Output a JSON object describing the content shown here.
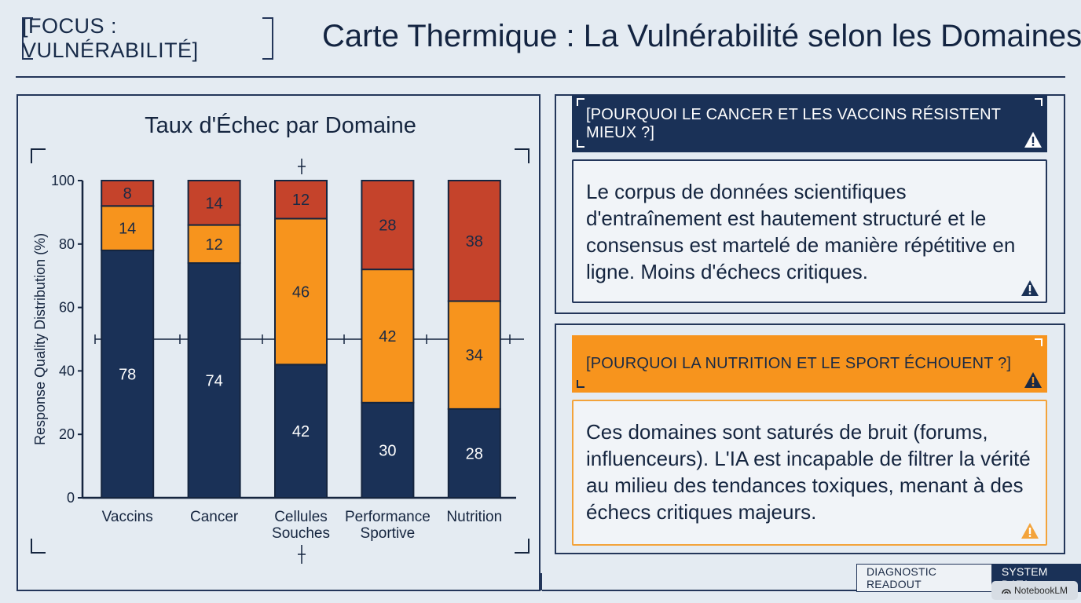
{
  "header": {
    "tag": "[FOCUS : VULNÉRABILITÉ]",
    "title": "Carte Thermique : La Vulnérabilité selon les Domaines"
  },
  "chart_data": {
    "type": "bar",
    "stacked": true,
    "title": "Taux d'Échec par Domaine",
    "xlabel": "",
    "ylabel": "Response Quality Distribution (%)",
    "ylim": [
      0,
      100
    ],
    "yticks": [
      0,
      20,
      40,
      60,
      80,
      100
    ],
    "categories": [
      [
        "Vaccins"
      ],
      [
        "Cancer"
      ],
      [
        "Cellules",
        "Souches"
      ],
      [
        "Performance",
        "Sportive"
      ],
      [
        "Nutrition"
      ]
    ],
    "series": [
      {
        "values": [
          78,
          74,
          42,
          30,
          28
        ],
        "color": "#1a3157",
        "label_color": "#ffffff"
      },
      {
        "values": [
          14,
          12,
          46,
          42,
          34
        ],
        "color": "#f7941d",
        "label_color": "#1a2a45"
      },
      {
        "values": [
          8,
          14,
          12,
          28,
          38
        ],
        "color": "#c5432b",
        "label_color": "#1a2a45"
      }
    ],
    "grid": false,
    "legend": "none"
  },
  "panels": {
    "q1": "[POURQUOI LE CANCER ET LES VACCINS RÉSISTENT MIEUX ?]",
    "a1": "Le corpus de données scientifiques d'entraînement est hautement structuré et le consensus est martelé de manière répétitive en ligne. Moins d'échecs critiques.",
    "q2": "[POURQUOI LA NUTRITION ET LE SPORT ÉCHOUENT ?]",
    "a2": "Ces domaines sont saturés de bruit (forums, influenceurs). L'IA est incapable de filtrer la vérité au milieu des tendances toxiques, menant à des échecs critiques majeurs."
  },
  "footer": {
    "tab1": "DIAGNOSTIC READOUT",
    "tab2": "SYSTEM DATA"
  },
  "watermark": "NotebookLM",
  "colors": {
    "navy": "#1a3157",
    "orange": "#f7941d",
    "red": "#c5432b",
    "background": "#e4ebf2"
  }
}
